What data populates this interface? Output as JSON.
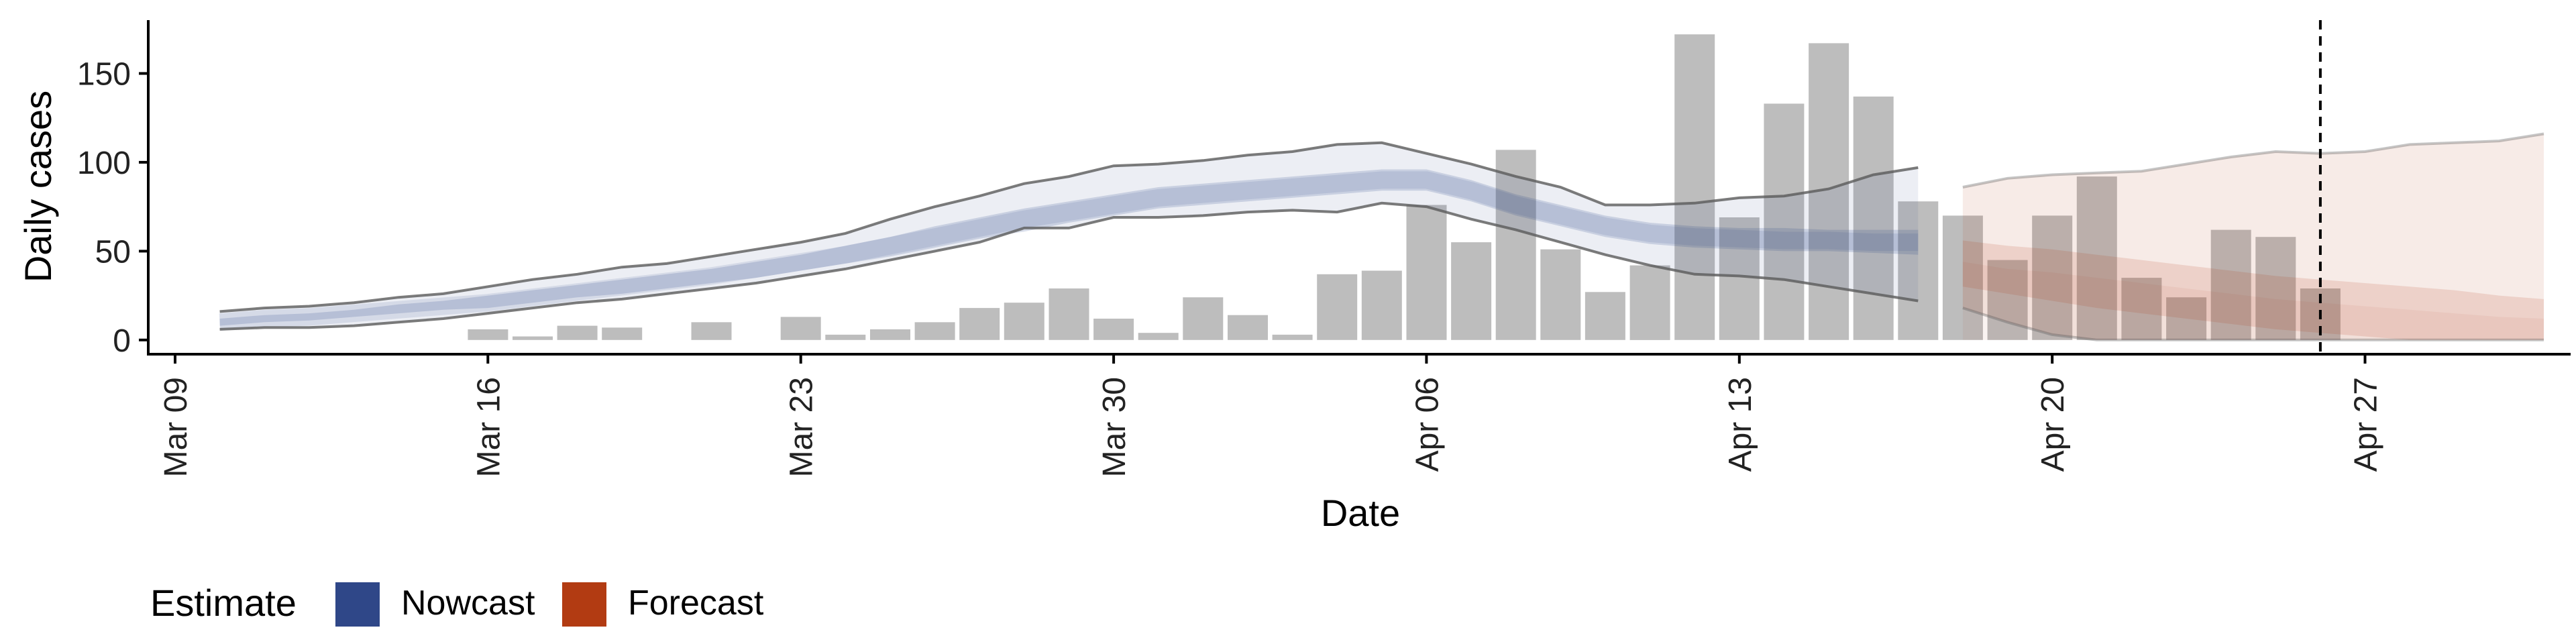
{
  "chart_data": {
    "type": "bar",
    "xlabel": "Date",
    "ylabel": "Daily cases",
    "y_ticks": [
      0,
      50,
      100,
      150
    ],
    "ylim": [
      -8,
      180
    ],
    "x_ticks": [
      {
        "label": "Mar 09",
        "day": 9
      },
      {
        "label": "Mar 16",
        "day": 16
      },
      {
        "label": "Mar 23",
        "day": 23
      },
      {
        "label": "Mar 30",
        "day": 30
      },
      {
        "label": "Apr 06",
        "day": 37
      },
      {
        "label": "Apr 13",
        "day": 44
      },
      {
        "label": "Apr 20",
        "day": 51
      },
      {
        "label": "Apr 27",
        "day": 58
      }
    ],
    "xlim_day": [
      8.4,
      62.6
    ],
    "cases": [
      {
        "date": "Mar 16",
        "day": 16,
        "value": 6
      },
      {
        "date": "Mar 17",
        "day": 17,
        "value": 2
      },
      {
        "date": "Mar 18",
        "day": 18,
        "value": 8
      },
      {
        "date": "Mar 19",
        "day": 19,
        "value": 7
      },
      {
        "date": "Mar 21",
        "day": 21,
        "value": 10
      },
      {
        "date": "Mar 23",
        "day": 23,
        "value": 13
      },
      {
        "date": "Mar 24",
        "day": 24,
        "value": 3
      },
      {
        "date": "Mar 25",
        "day": 25,
        "value": 6
      },
      {
        "date": "Mar 26",
        "day": 26,
        "value": 10
      },
      {
        "date": "Mar 27",
        "day": 27,
        "value": 18
      },
      {
        "date": "Mar 28",
        "day": 28,
        "value": 21
      },
      {
        "date": "Mar 29",
        "day": 29,
        "value": 29
      },
      {
        "date": "Mar 30",
        "day": 30,
        "value": 12
      },
      {
        "date": "Mar 31",
        "day": 31,
        "value": 4
      },
      {
        "date": "Apr 01",
        "day": 32,
        "value": 24
      },
      {
        "date": "Apr 02",
        "day": 33,
        "value": 14
      },
      {
        "date": "Apr 03",
        "day": 34,
        "value": 3
      },
      {
        "date": "Apr 04",
        "day": 35,
        "value": 37
      },
      {
        "date": "Apr 05",
        "day": 36,
        "value": 39
      },
      {
        "date": "Apr 06",
        "day": 37,
        "value": 76
      },
      {
        "date": "Apr 07",
        "day": 38,
        "value": 55
      },
      {
        "date": "Apr 08",
        "day": 39,
        "value": 107
      },
      {
        "date": "Apr 09",
        "day": 40,
        "value": 51
      },
      {
        "date": "Apr 10",
        "day": 41,
        "value": 27
      },
      {
        "date": "Apr 11",
        "day": 42,
        "value": 42
      },
      {
        "date": "Apr 12",
        "day": 43,
        "value": 172
      },
      {
        "date": "Apr 13",
        "day": 44,
        "value": 69
      },
      {
        "date": "Apr 14",
        "day": 45,
        "value": 133
      },
      {
        "date": "Apr 15",
        "day": 46,
        "value": 167
      },
      {
        "date": "Apr 16",
        "day": 47,
        "value": 137
      },
      {
        "date": "Apr 17",
        "day": 48,
        "value": 78
      },
      {
        "date": "Apr 18",
        "day": 49,
        "value": 70
      },
      {
        "date": "Apr 19",
        "day": 50,
        "value": 45
      },
      {
        "date": "Apr 20",
        "day": 51,
        "value": 70
      },
      {
        "date": "Apr 21",
        "day": 52,
        "value": 92
      },
      {
        "date": "Apr 22",
        "day": 53,
        "value": 35
      },
      {
        "date": "Apr 23",
        "day": 54,
        "value": 24
      },
      {
        "date": "Apr 24",
        "day": 55,
        "value": 62
      },
      {
        "date": "Apr 25",
        "day": 56,
        "value": 58
      },
      {
        "date": "Apr 26",
        "day": 57,
        "value": 29
      }
    ],
    "nowcast": {
      "day": [
        10,
        11,
        12,
        13,
        14,
        15,
        16,
        17,
        18,
        19,
        20,
        21,
        22,
        23,
        24,
        25,
        26,
        27,
        28,
        29,
        30,
        31,
        32,
        33,
        34,
        35,
        36,
        37,
        38,
        39,
        40,
        41,
        42,
        43,
        44,
        45,
        46,
        47,
        48
      ],
      "outer_upper": [
        16,
        18,
        19,
        21,
        24,
        26,
        30,
        34,
        37,
        41,
        43,
        47,
        51,
        55,
        60,
        68,
        75,
        81,
        88,
        92,
        98,
        99,
        101,
        104,
        106,
        110,
        111,
        105,
        99,
        92,
        86,
        76,
        76,
        77,
        80,
        81,
        85,
        93,
        97
      ],
      "inner_upper": [
        12,
        14,
        15,
        17,
        20,
        22,
        25,
        28,
        31,
        34,
        37,
        40,
        44,
        48,
        53,
        58,
        64,
        69,
        74,
        78,
        82,
        86,
        88,
        90,
        92,
        94,
        96,
        96,
        90,
        82,
        76,
        70,
        66,
        64,
        63,
        63,
        62,
        62,
        62
      ],
      "median": [
        10,
        12,
        13,
        15,
        17,
        19,
        21,
        24,
        27,
        30,
        33,
        36,
        40,
        44,
        48,
        53,
        58,
        63,
        68,
        72,
        76,
        80,
        82,
        84,
        86,
        88,
        90,
        90,
        84,
        76,
        70,
        64,
        60,
        58,
        57,
        56,
        56,
        55,
        55
      ],
      "inner_lower": [
        8,
        10,
        11,
        13,
        15,
        17,
        18,
        21,
        24,
        26,
        29,
        32,
        35,
        39,
        43,
        47,
        52,
        57,
        61,
        66,
        70,
        74,
        76,
        78,
        80,
        82,
        84,
        84,
        78,
        70,
        64,
        58,
        54,
        52,
        51,
        50,
        50,
        49,
        48
      ],
      "outer_lower": [
        6,
        7,
        7,
        8,
        10,
        12,
        15,
        18,
        21,
        23,
        26,
        29,
        32,
        36,
        40,
        45,
        50,
        55,
        63,
        63,
        69,
        69,
        70,
        72,
        73,
        72,
        77,
        75,
        68,
        62,
        55,
        48,
        42,
        37,
        36,
        34,
        30,
        26,
        22
      ]
    },
    "forecast": {
      "day": [
        49,
        50,
        51,
        52,
        53,
        54,
        55,
        56,
        57,
        58,
        59,
        60,
        61,
        62
      ],
      "outer_upper": [
        86,
        91,
        93,
        94,
        95,
        99,
        103,
        106,
        105,
        106,
        110,
        111,
        112,
        116
      ],
      "inner_upper": [
        56,
        53,
        51,
        48,
        45,
        42,
        39,
        36,
        34,
        32,
        30,
        28,
        25,
        23
      ],
      "median": [
        44,
        40,
        38,
        35,
        32,
        29,
        26,
        23,
        21,
        19,
        17,
        15,
        13,
        12
      ],
      "inner_lower": [
        30,
        26,
        22,
        18,
        15,
        12,
        9,
        6,
        4,
        2,
        0,
        0,
        0,
        0
      ],
      "outer_lower": [
        18,
        10,
        3,
        0,
        0,
        0,
        0,
        0,
        0,
        0,
        0,
        0,
        0,
        0
      ]
    },
    "vline_day": 57.0,
    "legend": {
      "title": "Estimate",
      "position": "bottom-left",
      "items": [
        {
          "label": "Nowcast",
          "color": "#2f4788"
        },
        {
          "label": "Forecast",
          "color": "#b23b12"
        }
      ]
    },
    "colors": {
      "bars": "#bdbdbd",
      "nowcast_band": "#2f4788",
      "forecast_band": "#b23b12",
      "interval_lines": "#5a5a5a"
    }
  }
}
